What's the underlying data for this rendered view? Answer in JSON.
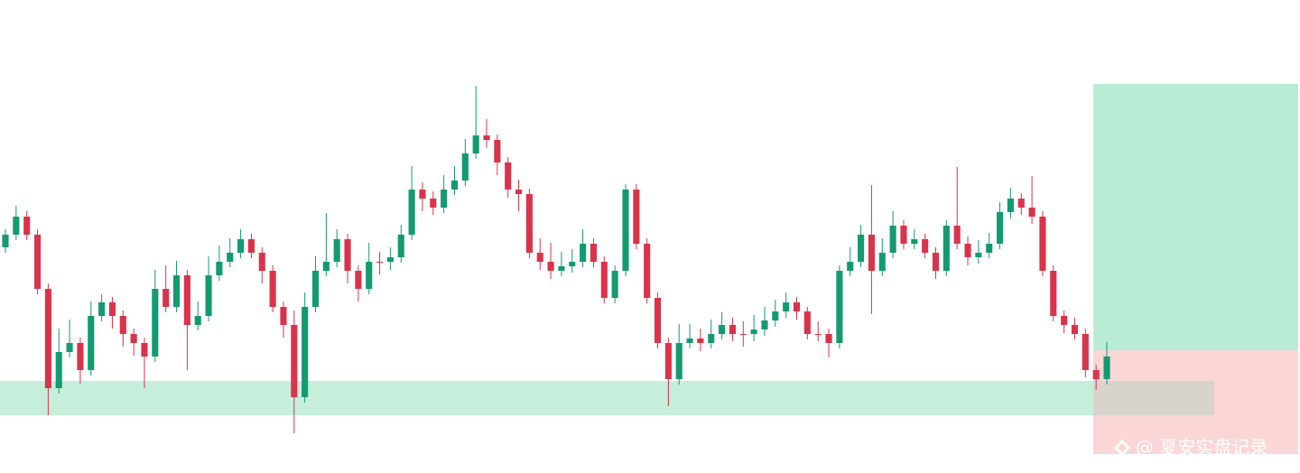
{
  "chart_data": {
    "type": "candlestick",
    "up_color": "#139a70",
    "down_color": "#d9334a",
    "ylim": [
      0,
      524
    ],
    "open": [
      250,
      264,
      284,
      264,
      204,
      94,
      134,
      144,
      114,
      174,
      189,
      174,
      154,
      144,
      129,
      204,
      184,
      219,
      164,
      174,
      219,
      234,
      244,
      259,
      244,
      224,
      184,
      164,
      84,
      184,
      224,
      234,
      259,
      224,
      204,
      234,
      234,
      239,
      264,
      314,
      304,
      294,
      314,
      324,
      354,
      374,
      369,
      344,
      314,
      309,
      244,
      234,
      224,
      229,
      234,
      254,
      234,
      194,
      224,
      314,
      254,
      194,
      144,
      104,
      144,
      149,
      144,
      154,
      164,
      154,
      154,
      159,
      169,
      179,
      189,
      179,
      154,
      154,
      144,
      224,
      234,
      264,
      224,
      244,
      274,
      254,
      259,
      244,
      224,
      274,
      254,
      239,
      244,
      254,
      289,
      304,
      294,
      284,
      224,
      174,
      164,
      154,
      114,
      104
    ],
    "high": [
      270,
      296,
      290,
      270,
      210,
      160,
      170,
      150,
      190,
      198,
      195,
      180,
      160,
      150,
      225,
      230,
      235,
      225,
      190,
      240,
      252,
      260,
      270,
      265,
      250,
      230,
      190,
      180,
      200,
      240,
      288,
      270,
      265,
      230,
      255,
      245,
      250,
      275,
      340,
      322,
      312,
      330,
      340,
      370,
      429,
      392,
      375,
      350,
      325,
      315,
      260,
      255,
      245,
      248,
      270,
      260,
      240,
      230,
      320,
      320,
      260,
      200,
      150,
      165,
      165,
      160,
      170,
      178,
      172,
      168,
      175,
      184,
      192,
      200,
      195,
      184,
      168,
      160,
      230,
      250,
      275,
      319,
      260,
      290,
      280,
      270,
      265,
      250,
      280,
      339,
      262,
      258,
      266,
      300,
      316,
      310,
      329,
      290,
      230,
      180,
      172,
      160,
      120,
      145
    ],
    "low": [
      244,
      258,
      258,
      198,
      64,
      88,
      128,
      99,
      108,
      168,
      160,
      140,
      130,
      94,
      123,
      178,
      178,
      114,
      158,
      168,
      213,
      228,
      238,
      238,
      210,
      178,
      150,
      44,
      78,
      178,
      218,
      228,
      210,
      190,
      198,
      220,
      225,
      233,
      258,
      290,
      286,
      288,
      308,
      318,
      348,
      360,
      330,
      305,
      290,
      238,
      225,
      215,
      218,
      222,
      228,
      228,
      188,
      188,
      218,
      248,
      188,
      138,
      74,
      98,
      138,
      135,
      138,
      148,
      146,
      140,
      146,
      152,
      162,
      172,
      170,
      148,
      146,
      128,
      138,
      218,
      228,
      176,
      218,
      238,
      248,
      248,
      238,
      215,
      218,
      248,
      230,
      232,
      238,
      248,
      282,
      286,
      276,
      218,
      168,
      155,
      148,
      106,
      92,
      98
    ],
    "close": [
      264,
      284,
      264,
      204,
      94,
      134,
      144,
      114,
      174,
      189,
      174,
      154,
      144,
      129,
      204,
      184,
      219,
      164,
      174,
      219,
      234,
      244,
      259,
      244,
      224,
      184,
      164,
      84,
      184,
      224,
      234,
      259,
      224,
      204,
      234,
      234,
      239,
      264,
      314,
      304,
      294,
      314,
      324,
      354,
      374,
      369,
      344,
      314,
      309,
      244,
      234,
      224,
      229,
      234,
      254,
      234,
      194,
      224,
      314,
      254,
      194,
      144,
      104,
      144,
      149,
      144,
      154,
      164,
      154,
      154,
      159,
      169,
      179,
      189,
      179,
      154,
      154,
      144,
      224,
      234,
      264,
      224,
      244,
      274,
      254,
      259,
      244,
      224,
      274,
      254,
      239,
      244,
      254,
      289,
      304,
      294,
      284,
      224,
      174,
      164,
      154,
      114,
      104,
      129
    ]
  },
  "watermark": "@ 夏安实盘记录"
}
